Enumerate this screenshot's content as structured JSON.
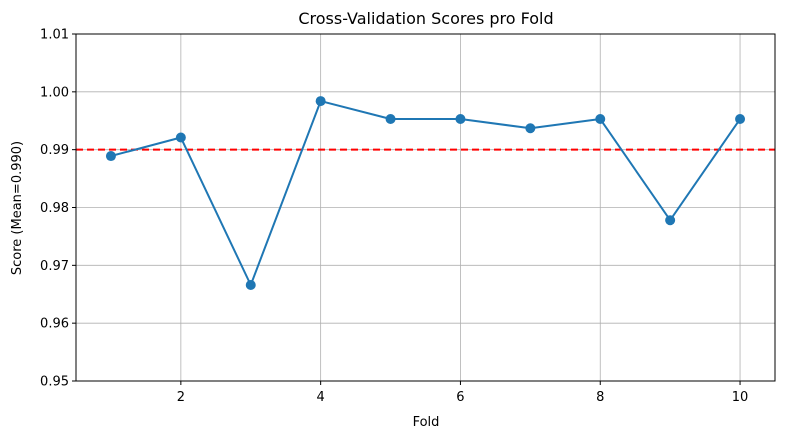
{
  "chart_data": {
    "type": "line",
    "title": "Cross-Validation Scores pro Fold",
    "xlabel": "Fold",
    "ylabel": "Score (Mean=0.990)",
    "x": [
      1,
      2,
      3,
      4,
      5,
      6,
      7,
      8,
      9,
      10
    ],
    "series": [
      {
        "values": [
          0.9889,
          0.9921,
          0.9666,
          0.9984,
          0.9953,
          0.9953,
          0.9937,
          0.9953,
          0.9778,
          0.9953
        ],
        "color": "#1f77b4"
      }
    ],
    "reference_line": {
      "y": 0.99,
      "color": "#ff0000",
      "style": "dashed"
    },
    "xlim": [
      0.5,
      10.5
    ],
    "ylim": [
      0.95,
      1.01
    ],
    "xticks": [
      2,
      4,
      6,
      8,
      10
    ],
    "xtick_labels": [
      "2",
      "4",
      "6",
      "8",
      "10"
    ],
    "yticks": [
      0.95,
      0.96,
      0.97,
      0.98,
      0.99,
      1.0,
      1.01
    ],
    "ytick_labels": [
      "0.95",
      "0.96",
      "0.97",
      "0.98",
      "0.99",
      "1.00",
      "1.01"
    ],
    "grid": true,
    "legend": "none"
  }
}
